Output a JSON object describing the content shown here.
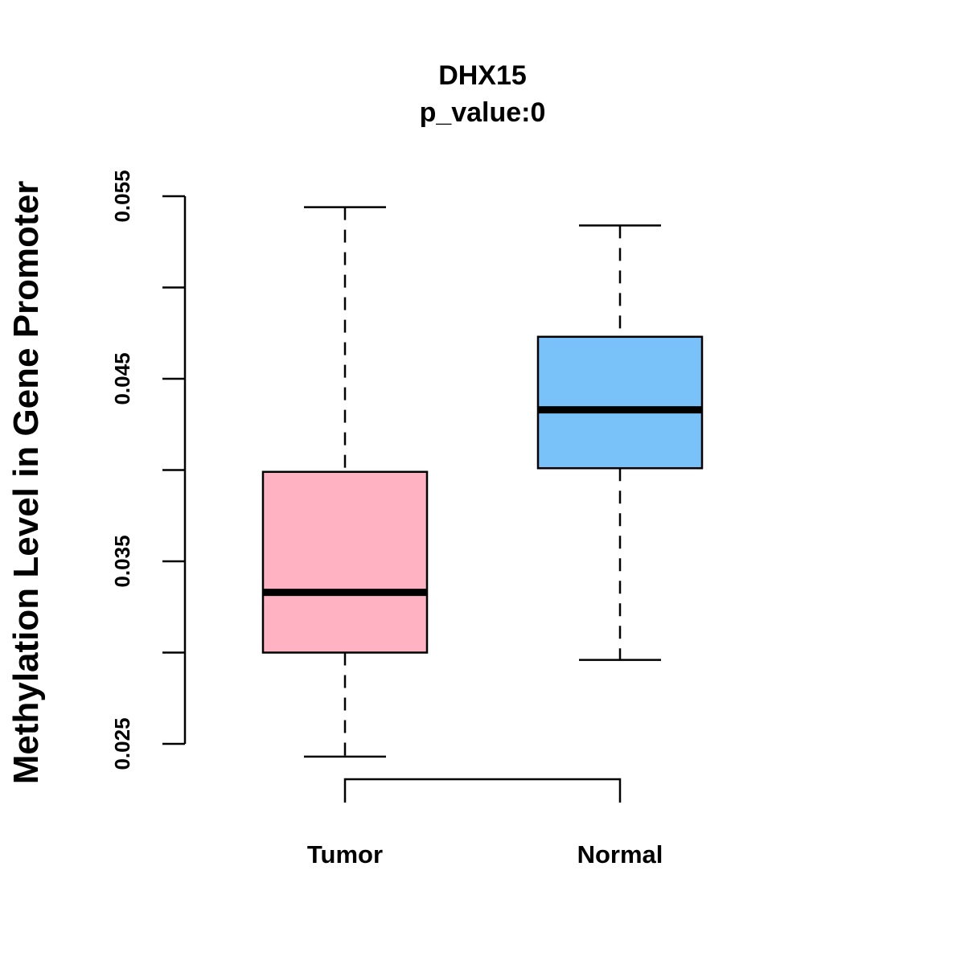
{
  "chart_data": {
    "type": "boxplot",
    "title": "DHX15",
    "subtitle": "p_value:0",
    "xlabel": "",
    "ylabel": "Methylation Level in Gene Promoter",
    "ylim": [
      0.025,
      0.055
    ],
    "y_ticks": [
      0.025,
      0.03,
      0.035,
      0.04,
      0.045,
      0.05,
      0.055
    ],
    "y_tick_labels": [
      "0.025",
      "",
      "0.035",
      "",
      "0.045",
      "",
      "0.055"
    ],
    "categories": [
      "Tumor",
      "Normal"
    ],
    "series": [
      {
        "name": "Tumor",
        "color": "#FFB2C2",
        "whisker_low": 0.0243,
        "q1": 0.03,
        "median": 0.0333,
        "q3": 0.0399,
        "whisker_high": 0.0544
      },
      {
        "name": "Normal",
        "color": "#78C1F9",
        "whisker_low": 0.0296,
        "q1": 0.0401,
        "median": 0.0433,
        "q3": 0.0473,
        "whisker_high": 0.0534
      }
    ],
    "comparison_bracket": [
      "Tumor",
      "Normal"
    ]
  }
}
